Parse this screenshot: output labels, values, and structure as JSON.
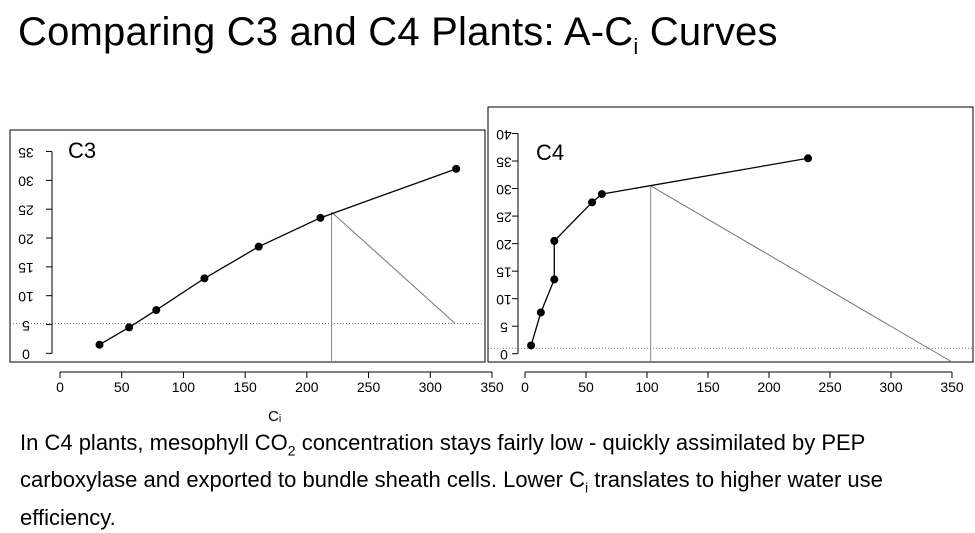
{
  "title": {
    "prefix": "Comparing C3 and C4 Plants: A-C",
    "sub": "i",
    "suffix": " Curves"
  },
  "caption": {
    "part1": "In C4 plants, mesophyll CO",
    "sub1": "2",
    "part2": " concentration stays fairly low - quickly assimilated by PEP carboxylase and exported to bundle sheath cells. Lower C",
    "sub2": "i",
    "part3": " translates to higher water use efficiency."
  },
  "x_unit_label": "Cᵢ",
  "chart_data": [
    {
      "type": "line",
      "label": "C3",
      "x": [
        32,
        56,
        78,
        117,
        161,
        211,
        321
      ],
      "y": [
        1.5,
        4.5,
        7.5,
        13,
        18.5,
        23.5,
        32
      ],
      "xlim": [
        0,
        350
      ],
      "ylim": [
        -1.5,
        37
      ],
      "xticks": [
        0,
        50,
        100,
        150,
        200,
        250,
        300,
        350
      ],
      "yticks": [
        0,
        5,
        10,
        15,
        20,
        25,
        30,
        35
      ],
      "dotted_reference_y": 5.2,
      "tangent_line": {
        "x": [
          220,
          320
        ],
        "y": [
          24.5,
          5.2
        ]
      },
      "vertical_line_x": 220
    },
    {
      "type": "line",
      "label": "C4",
      "x": [
        5,
        13,
        24,
        24,
        55,
        63,
        232
      ],
      "y": [
        1.5,
        7.5,
        13.5,
        20.5,
        27.5,
        29,
        35.5
      ],
      "xlim": [
        0,
        350
      ],
      "ylim": [
        -1.5,
        41
      ],
      "xticks": [
        0,
        50,
        100,
        150,
        200,
        250,
        300,
        350
      ],
      "yticks": [
        0,
        5,
        10,
        15,
        20,
        25,
        30,
        35,
        40
      ],
      "dotted_reference_y": 1,
      "tangent_line": {
        "x": [
          103,
          350
        ],
        "y": [
          30.5,
          -1.5
        ]
      },
      "vertical_line_x": 103
    }
  ]
}
